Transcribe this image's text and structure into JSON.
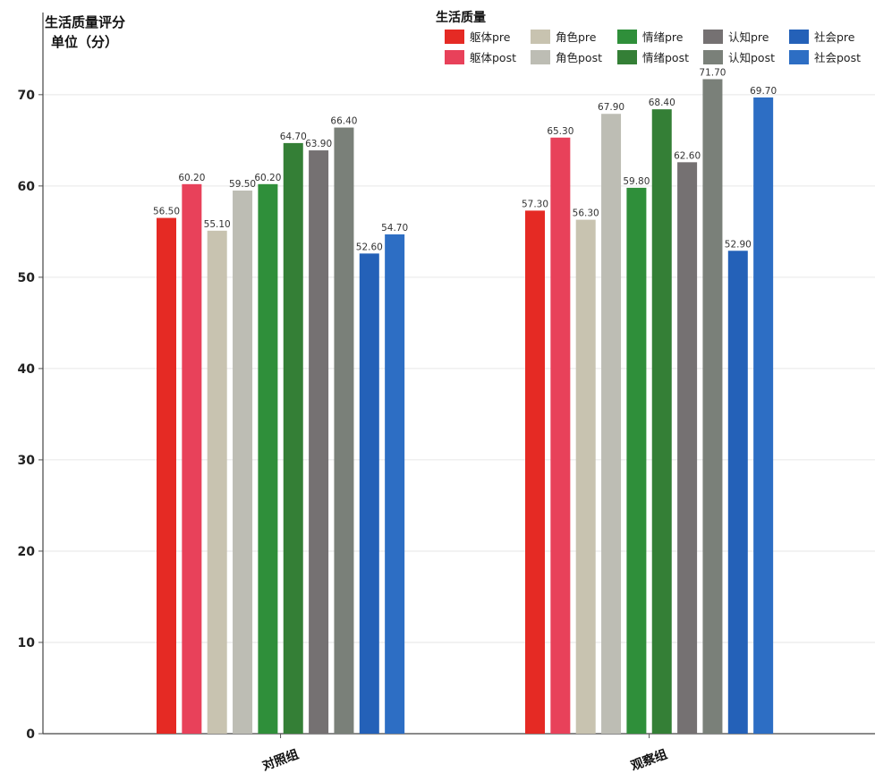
{
  "chart_data": {
    "type": "bar",
    "ylabel_lines": [
      "生活质量评分",
      "单位（分）"
    ],
    "ylim": [
      0,
      79
    ],
    "yticks": [
      0,
      10,
      20,
      30,
      40,
      50,
      60,
      70
    ],
    "grid": true,
    "legend_title": "生活质量",
    "legend_position": "top-right",
    "categories": [
      "对照组",
      "观察组"
    ],
    "series": [
      {
        "name": "躯体pre",
        "color": "#e52a24",
        "values": [
          56.5,
          57.3
        ]
      },
      {
        "name": "躯体post",
        "color": "#e8415a",
        "values": [
          60.2,
          65.3
        ]
      },
      {
        "name": "角色pre",
        "color": "#c8c3b0",
        "values": [
          55.1,
          56.3
        ]
      },
      {
        "name": "角色post",
        "color": "#bdbdb4",
        "values": [
          59.5,
          67.9
        ]
      },
      {
        "name": "情绪pre",
        "color": "#2f8f3a",
        "values": [
          60.2,
          59.8
        ]
      },
      {
        "name": "情绪post",
        "color": "#347f36",
        "values": [
          64.7,
          68.4
        ]
      },
      {
        "name": "认知pre",
        "color": "#757172",
        "values": [
          63.9,
          62.6
        ]
      },
      {
        "name": "认知post",
        "color": "#7a8079",
        "values": [
          66.4,
          71.7
        ]
      },
      {
        "name": "社会pre",
        "color": "#2461b8",
        "values": [
          52.6,
          52.9
        ]
      },
      {
        "name": "社会post",
        "color": "#2d6ec4",
        "values": [
          54.7,
          69.7
        ]
      }
    ],
    "value_format_decimals": 2
  }
}
